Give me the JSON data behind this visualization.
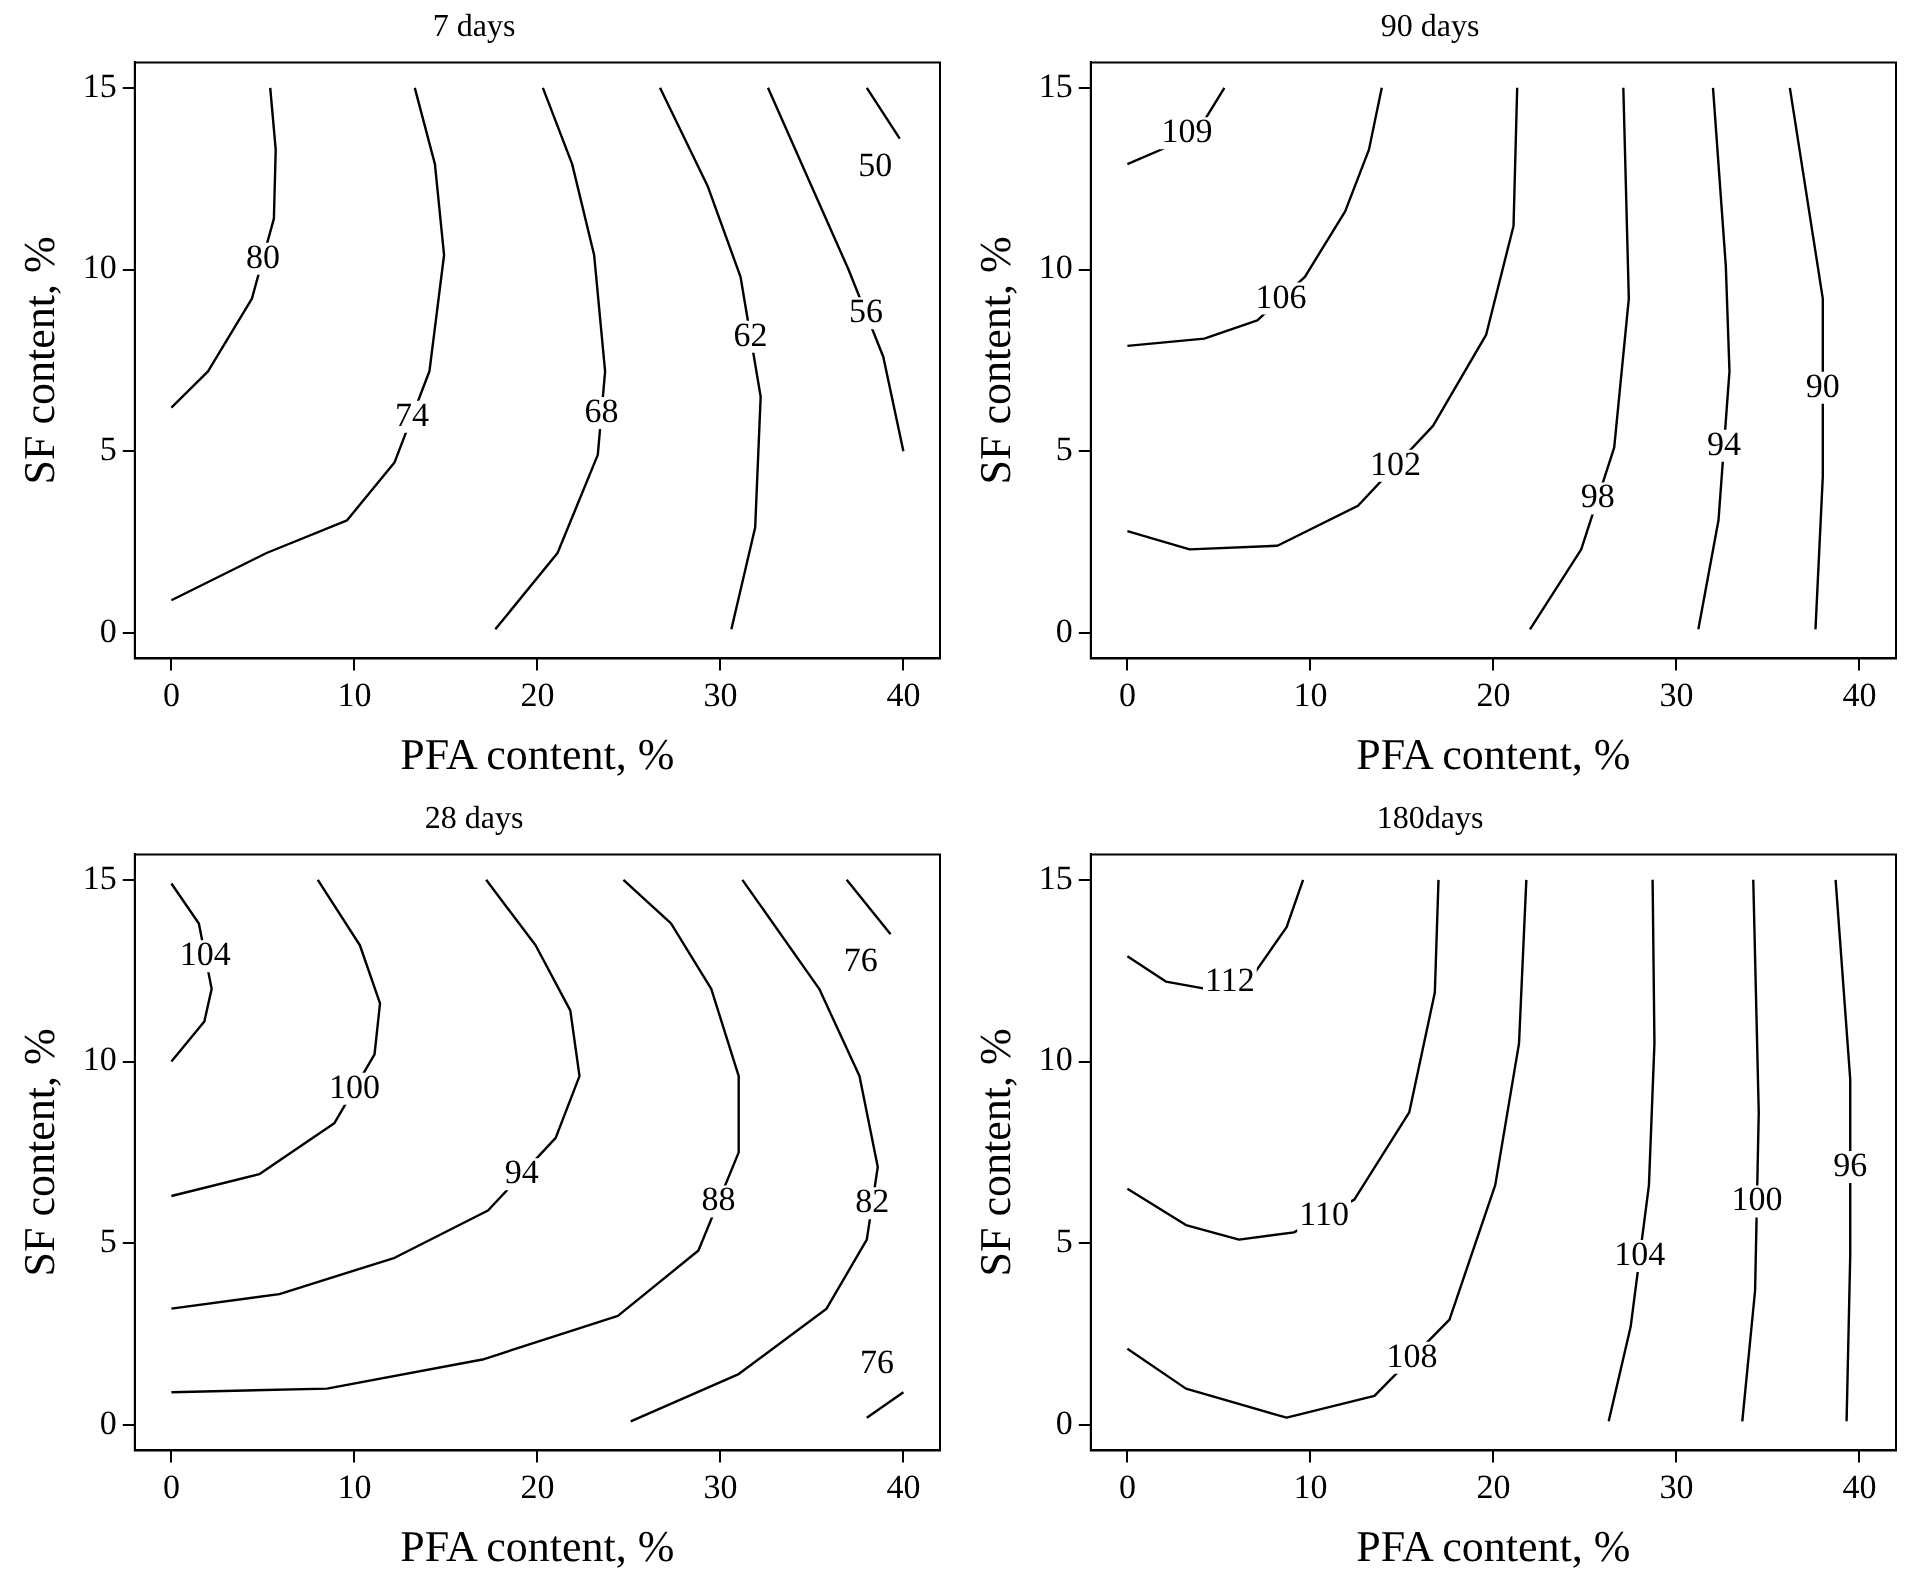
{
  "chart_data": [
    {
      "type": "line",
      "title": "7 days",
      "xlabel": "PFA content, %",
      "ylabel": "SF content, %",
      "xlim": [
        -2,
        42
      ],
      "ylim": [
        -0.7,
        15.7
      ],
      "xticks": [
        0,
        10,
        20,
        30,
        40
      ],
      "yticks": [
        0,
        5,
        10,
        15
      ],
      "marker": "none",
      "series": [
        {
          "name": "80",
          "color": "#000000",
          "x": [
            0,
            2.0,
            4.4,
            5.6,
            5.7,
            5.4
          ],
          "values": [
            6.2,
            7.2,
            9.2,
            11.4,
            13.3,
            15
          ]
        },
        {
          "name": "74",
          "color": "#000000",
          "x": [
            0,
            5.2,
            9.6,
            12.2,
            14.1,
            14.9,
            14.4,
            13.3
          ],
          "values": [
            0.9,
            2.2,
            3.1,
            4.7,
            7.2,
            10.4,
            12.9,
            15
          ]
        },
        {
          "name": "68",
          "color": "#000000",
          "x": [
            17.7,
            21.1,
            23.3,
            23.7,
            23.1,
            21.9,
            20.3
          ],
          "values": [
            0.1,
            2.2,
            4.9,
            7.2,
            10.4,
            12.9,
            15
          ]
        },
        {
          "name": "62",
          "color": "#000000",
          "x": [
            30.6,
            31.9,
            32.2,
            31.1,
            29.3,
            26.7
          ],
          "values": [
            0.1,
            2.9,
            6.5,
            9.8,
            12.3,
            15
          ]
        },
        {
          "name": "56",
          "color": "#000000",
          "x": [
            40,
            38.9,
            37.0,
            34.8,
            32.6
          ],
          "values": [
            5.0,
            7.6,
            10.0,
            12.5,
            15
          ]
        },
        {
          "name": "50",
          "color": "#000000",
          "x": [
            39.8,
            38
          ],
          "values": [
            13.6,
            15
          ]
        }
      ]
    },
    {
      "type": "line",
      "title": "90 days",
      "xlabel": "PFA content, %",
      "ylabel": "SF content, %",
      "xlim": [
        -2,
        42
      ],
      "ylim": [
        -0.7,
        15.7
      ],
      "xticks": [
        0,
        10,
        20,
        30,
        40
      ],
      "yticks": [
        0,
        5,
        10,
        15
      ],
      "marker": "none",
      "series": [
        {
          "name": "109",
          "color": "#000000",
          "x": [
            0,
            2.3,
            4.2,
            5.3
          ],
          "values": [
            12.9,
            13.4,
            14.1,
            15
          ]
        },
        {
          "name": "106",
          "color": "#000000",
          "x": [
            0,
            4.2,
            7.1,
            9.7,
            11.9,
            13.2,
            13.9
          ],
          "values": [
            7.9,
            8.1,
            8.6,
            9.8,
            11.6,
            13.3,
            15
          ]
        },
        {
          "name": "102",
          "color": "#000000",
          "x": [
            0,
            3.4,
            8.2,
            12.6,
            16.7,
            19.6,
            21.1,
            21.3
          ],
          "values": [
            2.8,
            2.3,
            2.4,
            3.5,
            5.7,
            8.2,
            11.2,
            15
          ]
        },
        {
          "name": "98",
          "color": "#000000",
          "x": [
            22.0,
            24.8,
            26.6,
            27.4,
            27.1
          ],
          "values": [
            0.1,
            2.3,
            5.1,
            9.2,
            15
          ]
        },
        {
          "name": "94",
          "color": "#000000",
          "x": [
            31.2,
            32.3,
            32.9,
            32.7,
            32.0
          ],
          "values": [
            0.1,
            3.1,
            7.2,
            10.1,
            15
          ]
        },
        {
          "name": "90",
          "color": "#000000",
          "x": [
            37.6,
            38.0,
            38.0,
            36.2
          ],
          "values": [
            0.1,
            4.3,
            9.2,
            15
          ]
        }
      ]
    },
    {
      "type": "line",
      "title": "28 days",
      "xlabel": "PFA content, %",
      "ylabel": "SF content, %",
      "xlim": [
        -2,
        42
      ],
      "ylim": [
        -0.7,
        15.7
      ],
      "xticks": [
        0,
        10,
        20,
        30,
        40
      ],
      "yticks": [
        0,
        5,
        10,
        15
      ],
      "marker": "none",
      "series": [
        {
          "name": "104",
          "color": "#000000",
          "x": [
            0,
            1.5,
            2.2,
            1.8,
            0
          ],
          "values": [
            14.9,
            13.8,
            12.0,
            11.1,
            10.0
          ]
        },
        {
          "name": "100",
          "color": "#000000",
          "x": [
            0,
            4.8,
            8.9,
            11.1,
            11.4,
            10.3,
            8.0
          ],
          "values": [
            6.3,
            6.9,
            8.3,
            10.2,
            11.6,
            13.2,
            15
          ]
        },
        {
          "name": "94",
          "color": "#000000",
          "x": [
            0,
            5.9,
            12.2,
            17.3,
            21.0,
            22.3,
            21.8,
            19.9,
            17.2
          ],
          "values": [
            3.2,
            3.6,
            4.6,
            5.9,
            7.9,
            9.6,
            11.4,
            13.2,
            15
          ]
        },
        {
          "name": "88",
          "color": "#000000",
          "x": [
            0,
            8.5,
            17.0,
            24.4,
            28.8,
            31.0,
            31.0,
            29.5,
            27.3,
            24.7
          ],
          "values": [
            0.9,
            1.0,
            1.8,
            3.0,
            4.8,
            7.5,
            9.6,
            12.0,
            13.8,
            15
          ]
        },
        {
          "name": "82",
          "color": "#000000",
          "x": [
            25.1,
            31.0,
            35.8,
            38.0,
            38.6,
            37.6,
            35.4,
            31.2
          ],
          "values": [
            0.1,
            1.4,
            3.2,
            5.1,
            7.1,
            9.6,
            12.0,
            15
          ]
        },
        {
          "name": "76",
          "color": "#000000",
          "x": [
            36.9,
            39.3
          ],
          "values": [
            15,
            13.5
          ]
        },
        {
          "name": "76",
          "color": "#000000",
          "x": [
            38.0,
            40
          ],
          "values": [
            0.2,
            0.9
          ]
        }
      ]
    },
    {
      "type": "line",
      "title": "180days",
      "xlabel": "PFA content, %",
      "ylabel": "SF content, %",
      "xlim": [
        -2,
        42
      ],
      "ylim": [
        -0.7,
        15.7
      ],
      "xticks": [
        0,
        10,
        20,
        30,
        40
      ],
      "yticks": [
        0,
        5,
        10,
        15
      ],
      "marker": "none",
      "series": [
        {
          "name": "112",
          "color": "#000000",
          "x": [
            0,
            2.1,
            4.3,
            6.9,
            8.7,
            9.6
          ],
          "values": [
            12.9,
            12.2,
            12.0,
            12.4,
            13.7,
            15
          ]
        },
        {
          "name": "110",
          "color": "#000000",
          "x": [
            0,
            3.2,
            6.1,
            9.1,
            12.4,
            15.4,
            16.8,
            17.0
          ],
          "values": [
            6.5,
            5.5,
            5.1,
            5.3,
            6.2,
            8.6,
            11.9,
            15
          ]
        },
        {
          "name": "108",
          "color": "#000000",
          "x": [
            0,
            3.2,
            8.7,
            13.5,
            17.6,
            20.1,
            21.4,
            21.8
          ],
          "values": [
            2.1,
            1.0,
            0.2,
            0.8,
            2.9,
            6.6,
            10.5,
            15
          ]
        },
        {
          "name": "104",
          "color": "#000000",
          "x": [
            26.3,
            27.5,
            28.5,
            28.8,
            28.7
          ],
          "values": [
            0.1,
            2.7,
            6.6,
            10.5,
            15
          ]
        },
        {
          "name": "100",
          "color": "#000000",
          "x": [
            33.6,
            34.3,
            34.5,
            34.2
          ],
          "values": [
            0.1,
            3.7,
            8.6,
            15
          ]
        },
        {
          "name": "96",
          "color": "#000000",
          "x": [
            39.3,
            39.5,
            39.5,
            38.7
          ],
          "values": [
            0.1,
            4.7,
            9.5,
            15
          ]
        }
      ]
    }
  ]
}
